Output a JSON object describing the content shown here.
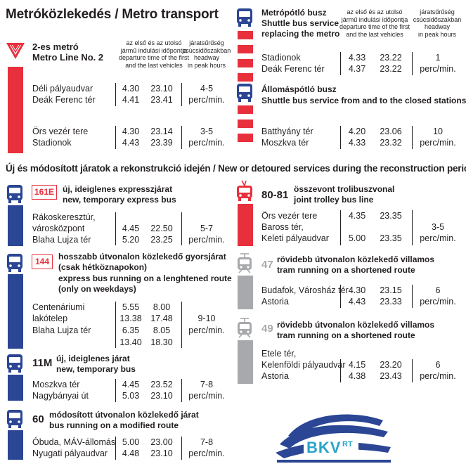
{
  "header": {
    "title": "Metróközlekedés / Metro transport",
    "section2_title": "Új és módosított járatok a rekonstrukció idején / New or detoured services during the reconstruction period"
  },
  "col_headers": {
    "times": "az első és az utolsó\njármű indulási időpontja\ndeparture time of the first\nand the last vehicles",
    "times_short": "az első és az utolsó\njármű indulási időpontja\ndeparture time of the first\nand the last vehicles",
    "headway": "járatsűrűség\ncsúcsidőszakban\nheadway\nin peak hours"
  },
  "metro2": {
    "title_hu": "2-es metró",
    "title_en": "Metro Line No. 2",
    "rows": [
      {
        "stop": "Déli pályaudvar",
        "first": "4.30",
        "last": "23.10",
        "headway": "4-5"
      },
      {
        "stop": "Deák Ferenc tér",
        "first": "4.41",
        "last": "23.41",
        "headway": "perc/min."
      },
      {
        "stop": "Örs vezér tere",
        "first": "4.30",
        "last": "23.14",
        "headway": "3-5"
      },
      {
        "stop": "Stadionok",
        "first": "4.43",
        "last": "23.39",
        "headway": "perc/min."
      }
    ]
  },
  "metro_replacement": {
    "title_hu": "Metrópótló busz",
    "title_en1": "Shuttle bus service",
    "title_en2": "replacing the metro",
    "rows": [
      {
        "stop": "Stadionok",
        "first": "4.33",
        "last": "23.22",
        "headway": "1"
      },
      {
        "stop": "Deák Ferenc tér",
        "first": "4.37",
        "last": "23.22",
        "headway": "perc/min."
      }
    ]
  },
  "station_replacement": {
    "title_hu": "Állomáspótló busz",
    "title_en": "Shuttle bus service from and to the closed stations",
    "rows": [
      {
        "stop": "Batthyány tér",
        "first": "4.20",
        "last": "23.06",
        "headway": "10"
      },
      {
        "stop": "Moszkva tér",
        "first": "4.33",
        "last": "23.32",
        "headway": "perc/min."
      }
    ]
  },
  "bus161e": {
    "route": "161E",
    "title_hu": "új, ideiglenes expresszjárat",
    "title_en": "new, temporary express bus",
    "stops": [
      "Rákoskeresztúr,",
      "városközpont",
      "Blaha Lujza tér"
    ],
    "first": [
      "4.45",
      "5.20"
    ],
    "last": [
      "22.50",
      "23.25"
    ],
    "headway": [
      "5-7",
      "perc/min."
    ]
  },
  "bus144": {
    "route": "144",
    "title_hu1": "hosszabb útvonalon közlekedő gyorsjárat",
    "title_hu2": "(csak hétköznapokon)",
    "title_en1": "express bus running on a lenghtened route",
    "title_en2": "(only on weekdays)",
    "stops": [
      "Centenáriumi",
      "lakótelep",
      "Blaha Lujza tér"
    ],
    "first": [
      "5.55",
      "13.38",
      "6.35",
      "13.40"
    ],
    "last": [
      "8.00",
      "17.48",
      "8.05",
      "18.30"
    ],
    "headway": [
      "9-10",
      "perc/min."
    ]
  },
  "bus11m": {
    "route": "11M",
    "title_hu": "új, ideiglenes járat",
    "title_en": "new, temporary bus",
    "stops": [
      "Moszkva tér",
      "Nagybányai út"
    ],
    "first": [
      "4.45",
      "5.03"
    ],
    "last": [
      "23.52",
      "23.10"
    ],
    "headway": [
      "7-8",
      "perc/min."
    ]
  },
  "bus60": {
    "route": "60",
    "title_hu": "módosított útvonalon közlekedő járat",
    "title_en": "bus running on a modified route",
    "stops": [
      "Óbuda, MÁV-állomás",
      "Nyugati pályaudvar"
    ],
    "first": [
      "5.00",
      "4.48"
    ],
    "last": [
      "23.00",
      "23.10"
    ],
    "headway": [
      "7-8",
      "perc/min."
    ]
  },
  "trolley8081": {
    "route": "80-81",
    "title_hu": "összevont trolibuszvonal",
    "title_en": "joint trolley bus line",
    "stops": [
      "Örs vezér tere",
      "Baross tér,",
      "Keleti pályaudvar"
    ],
    "first": [
      "4.35",
      "5.00"
    ],
    "last": [
      "23.35",
      "23.35"
    ],
    "headway": [
      "3-5",
      "perc/min."
    ]
  },
  "tram47": {
    "route": "47",
    "title_hu": "rövidebb útvonalon közlekedő villamos",
    "title_en": "tram running on a shortened route",
    "stops": [
      "Budafok, Városház tér",
      "Astoria"
    ],
    "first": [
      "4.30",
      "4.43"
    ],
    "last": [
      "23.15",
      "23.33"
    ],
    "headway": [
      "6",
      "perc/min."
    ]
  },
  "tram49": {
    "route": "49",
    "title_hu": "rövidebb útvonalon közlekedő villamos",
    "title_en": "tram running on a shortened route",
    "stops": [
      "Etele tér,",
      "Kelenföldi pályaudvar",
      "Astoria"
    ],
    "first": [
      "4.15",
      "4.38"
    ],
    "last": [
      "23.20",
      "23.43"
    ],
    "headway": [
      "6",
      "perc/min."
    ]
  },
  "logo": {
    "text": "BKV",
    "sup": "RT"
  },
  "colors": {
    "red": "#e8303d",
    "blue": "#2b4694",
    "grey": "#a7a9ac",
    "logo_teal": "#2aa4c8"
  }
}
